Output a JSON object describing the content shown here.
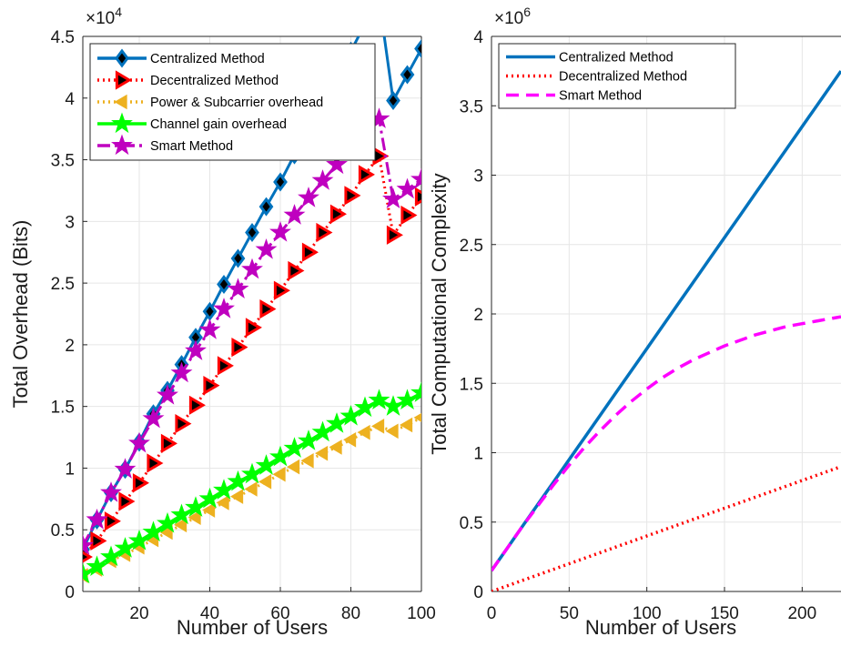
{
  "chart_data": [
    {
      "type": "line",
      "title": "",
      "xlabel": "Number of Users",
      "ylabel": "Total Overhead (Bits)",
      "exponent_label": "×10^4",
      "exponent_base": "×10",
      "exponent_power": "4",
      "xlim": [
        4,
        100
      ],
      "ylim": [
        0,
        45000
      ],
      "xticks": [
        20,
        40,
        60,
        80,
        100
      ],
      "xtick_labels": [
        "20",
        "40",
        "60",
        "80",
        "100"
      ],
      "yticks": [
        0,
        5000,
        10000,
        15000,
        20000,
        25000,
        30000,
        35000,
        40000,
        45000
      ],
      "ytick_labels": [
        "0",
        "0.5",
        "1",
        "1.5",
        "2",
        "2.5",
        "3",
        "3.5",
        "4",
        "4.5"
      ],
      "grid": true,
      "legend_position": "top-left",
      "x": [
        4,
        8,
        12,
        16,
        20,
        24,
        28,
        32,
        36,
        40,
        44,
        48,
        52,
        56,
        60,
        64,
        68,
        72,
        76,
        80,
        84,
        88,
        92,
        96,
        100
      ],
      "series": [
        {
          "name": "Centralized Method",
          "color": "#0072BD",
          "line_style": "solid",
          "marker": "diamond",
          "values": [
            3400,
            5800,
            8000,
            9900,
            12100,
            14400,
            16300,
            18400,
            20600,
            22700,
            24900,
            27000,
            29100,
            31200,
            33200,
            35400,
            37500,
            39600,
            41700,
            43800,
            46000,
            48000,
            39800,
            41900,
            44000
          ]
        },
        {
          "name": "Decentralized Method",
          "color": "#FF0000",
          "line_style": "dotted",
          "marker": "triangle-right",
          "values": [
            2800,
            4100,
            5700,
            7300,
            8800,
            10400,
            12000,
            13600,
            15100,
            16700,
            18300,
            19800,
            21400,
            22900,
            24400,
            26000,
            27500,
            29100,
            30600,
            32100,
            33800,
            35300,
            28900,
            30500,
            32000
          ]
        },
        {
          "name": "Power & Subcarrier overhead",
          "color": "#EDB120",
          "line_style": "dotted",
          "marker": "triangle-left",
          "values": [
            1300,
            1800,
            2500,
            3000,
            3600,
            4200,
            4800,
            5400,
            6000,
            6600,
            7200,
            7700,
            8300,
            8900,
            9500,
            10100,
            10600,
            11200,
            11700,
            12300,
            12900,
            13400,
            13000,
            13500,
            14100
          ]
        },
        {
          "name": "Channel gain overhead",
          "color": "#00FF00",
          "line_style": "solid",
          "marker": "star",
          "values": [
            1400,
            2000,
            2800,
            3500,
            4100,
            4800,
            5500,
            6200,
            6800,
            7500,
            8200,
            8900,
            9500,
            10200,
            10900,
            11600,
            12200,
            12900,
            13600,
            14200,
            14900,
            15500,
            15000,
            15500,
            16100
          ]
        },
        {
          "name": "Smart Method",
          "color": "#BF00BF",
          "line_style": "dashdot",
          "marker": "star",
          "values": [
            3700,
            5800,
            8000,
            9900,
            12000,
            14000,
            15900,
            17700,
            19500,
            21200,
            22900,
            24500,
            26100,
            27700,
            29100,
            30500,
            31900,
            33300,
            34600,
            35800,
            37100,
            38300,
            31800,
            32600,
            33400
          ]
        }
      ]
    },
    {
      "type": "line",
      "title": "",
      "xlabel": "Number of Users",
      "ylabel": "Total Computational Complexity",
      "exponent_label": "×10^6",
      "exponent_base": "×10",
      "exponent_power": "6",
      "xlim": [
        0,
        225
      ],
      "ylim": [
        0,
        4000000
      ],
      "xticks": [
        0,
        50,
        100,
        150,
        200
      ],
      "xtick_labels": [
        "0",
        "50",
        "100",
        "150",
        "200"
      ],
      "yticks": [
        0,
        500000,
        1000000,
        1500000,
        2000000,
        2500000,
        3000000,
        3500000,
        4000000
      ],
      "ytick_labels": [
        "0",
        "0.5",
        "1",
        "1.5",
        "2",
        "2.5",
        "3",
        "3.5",
        "4"
      ],
      "grid": true,
      "legend_position": "top-left",
      "x": [
        0,
        10,
        20,
        30,
        40,
        50,
        60,
        70,
        80,
        90,
        100,
        110,
        120,
        130,
        140,
        150,
        160,
        170,
        180,
        190,
        200,
        210,
        220,
        225
      ],
      "series": [
        {
          "name": "Centralized Method",
          "color": "#0072BD",
          "line_style": "solid",
          "values": [
            150000,
            310000,
            470000,
            630000,
            790000,
            950000,
            1110000,
            1270000,
            1430000,
            1590000,
            1750000,
            1910000,
            2070000,
            2230000,
            2390000,
            2550000,
            2710000,
            2870000,
            3030000,
            3190000,
            3350000,
            3510000,
            3670000,
            3750000
          ]
        },
        {
          "name": "Decentralized Method",
          "color": "#FF0000",
          "line_style": "dotted",
          "values": [
            0,
            40000,
            80000,
            120000,
            160000,
            200000,
            240000,
            280000,
            320000,
            360000,
            400000,
            440000,
            480000,
            520000,
            560000,
            600000,
            640000,
            680000,
            720000,
            760000,
            800000,
            840000,
            880000,
            900000
          ]
        },
        {
          "name": "Smart Method",
          "color": "#FF00FF",
          "line_style": "dashed",
          "values": [
            150000,
            310000,
            470000,
            620000,
            770000,
            910000,
            1040000,
            1160000,
            1270000,
            1370000,
            1460000,
            1540000,
            1610000,
            1670000,
            1720000,
            1770000,
            1810000,
            1850000,
            1880000,
            1910000,
            1930000,
            1950000,
            1970000,
            1980000
          ]
        }
      ]
    }
  ]
}
